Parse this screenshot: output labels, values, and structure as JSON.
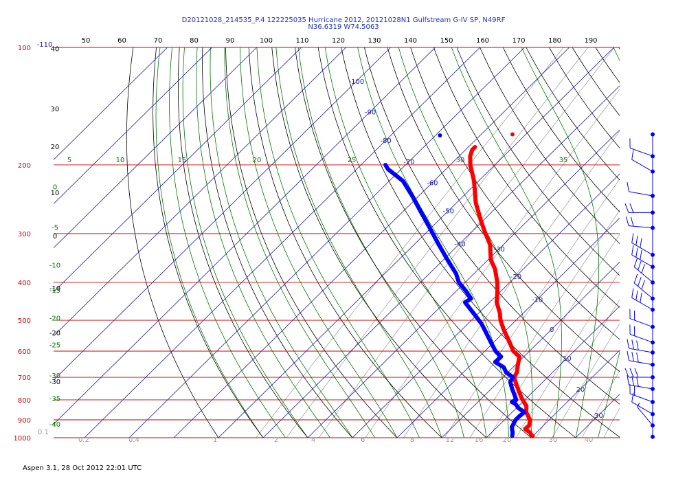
{
  "header": {
    "line1": "D20121028_214535_P.4 122225035 Hurricane 2012, 20121028N1 Gulfstream G-IV SP, N49RF",
    "line2": "N36.6319 W74.5063"
  },
  "footer": "Aspen 3.1, 28 Oct 2012  22:01 UTC",
  "colors": {
    "isobar": "#cc0000",
    "isotherm": "#1a1aaa",
    "dry_adiabat": "#000000",
    "moist_adiabat": "#007700",
    "mixing_ratio": "#999999",
    "temperature": "#ff0000",
    "dewpoint": "#0000ff",
    "wind": "#0000ff"
  },
  "chart_data": {
    "type": "skew-t log-p",
    "pressure_axis": {
      "unit": "hPa",
      "ticks": [
        100,
        200,
        300,
        400,
        500,
        600,
        700,
        800,
        900,
        1000
      ],
      "tick_labels": [
        "100",
        "200",
        "300",
        "400",
        "500",
        "600",
        "700",
        "800",
        "900",
        "1000"
      ]
    },
    "top_scale": {
      "ticks": [
        50,
        60,
        70,
        80,
        90,
        100,
        110,
        120,
        130,
        140,
        150,
        160,
        170,
        180,
        190
      ],
      "tick_labels": [
        "50",
        "60",
        "70",
        "80",
        "90",
        "100",
        "110",
        "120",
        "130",
        "140",
        "150",
        "160",
        "170",
        "180",
        "190"
      ]
    },
    "isotherms": {
      "labels": [
        {
          "t": -110,
          "text": "-110",
          "p": 100
        },
        {
          "t": -100,
          "text": "-100",
          "p": 122
        },
        {
          "t": -90,
          "text": "-90",
          "p": 146
        },
        {
          "t": -80,
          "text": "-80",
          "p": 173
        },
        {
          "t": -70,
          "text": "-70",
          "p": 196
        },
        {
          "t": -60,
          "text": "-60",
          "p": 222
        },
        {
          "t": -50,
          "text": "-50",
          "p": 262
        },
        {
          "t": -40,
          "text": "-40",
          "p": 318
        },
        {
          "t": -30,
          "text": "-30",
          "p": 328
        },
        {
          "t": -20,
          "text": "-20",
          "p": 386
        },
        {
          "t": -10,
          "text": "-10",
          "p": 442
        },
        {
          "t": 0,
          "text": "0",
          "p": 527
        },
        {
          "t": 10,
          "text": "10",
          "p": 625
        },
        {
          "t": 20,
          "text": "20",
          "p": 750
        },
        {
          "t": 30,
          "text": "30",
          "p": 875
        }
      ]
    },
    "dry_adiabat_labels": [
      {
        "text": "40",
        "p": 101
      },
      {
        "text": "30",
        "p": 144
      },
      {
        "text": "20",
        "p": 180
      },
      {
        "text": "10",
        "p": 236
      },
      {
        "text": "0",
        "p": 305
      },
      {
        "text": "-10",
        "p": 415
      },
      {
        "text": "-20",
        "p": 540
      },
      {
        "text": "-30",
        "p": 720
      }
    ],
    "moist_adiabat_labels": [
      {
        "text": "5",
        "x": 101
      },
      {
        "text": "10",
        "x": 175
      },
      {
        "text": "15",
        "x": 265
      },
      {
        "text": "20",
        "x": 374
      },
      {
        "text": "25",
        "x": 512
      },
      {
        "text": "30",
        "x": 670
      },
      {
        "text": "35",
        "x": 820
      },
      {
        "text": "0",
        "p": 228
      },
      {
        "text": "-5",
        "p": 290
      },
      {
        "text": "-10",
        "p": 362
      },
      {
        "text": "-15",
        "p": 420
      },
      {
        "text": "-20",
        "p": 495
      },
      {
        "text": "-25",
        "p": 580
      },
      {
        "text": "-30",
        "p": 695
      },
      {
        "text": "-35",
        "p": 795
      },
      {
        "text": "-40",
        "p": 925
      }
    ],
    "mixing_ratio_labels": [
      "0.1",
      "0.2",
      "0.4",
      "1",
      "2",
      "4",
      "6",
      "8",
      "12",
      "16",
      "20",
      "30",
      "40"
    ],
    "temperature": {
      "name": "Temperature",
      "p": [
        180,
        183,
        190,
        200,
        220,
        250,
        280,
        300,
        320,
        350,
        370,
        400,
        420,
        450,
        480,
        500,
        530,
        560,
        600,
        620,
        650,
        680,
        700,
        730,
        760,
        790,
        810,
        830,
        860,
        900,
        930,
        950,
        970,
        985,
        990
      ],
      "t": [
        -58.5,
        -58.5,
        -57.5,
        -55.5,
        -51,
        -45.7,
        -40.1,
        -36.5,
        -33,
        -29.4,
        -26.3,
        -22.8,
        -20.9,
        -18.4,
        -15.2,
        -13.5,
        -10.5,
        -7.4,
        -3.6,
        -1,
        0.5,
        2,
        2.5,
        4.6,
        6.7,
        8.8,
        10.3,
        11.8,
        13.1,
        15.7,
        16.8,
        16.7,
        18.6,
        19.5,
        20
      ]
    },
    "dewpoint": {
      "name": "Dewpoint",
      "p": [
        200,
        205,
        220,
        240,
        260,
        290,
        320,
        350,
        380,
        400,
        420,
        440,
        450,
        480,
        510,
        540,
        570,
        600,
        620,
        640,
        660,
        680,
        700,
        720,
        750,
        780,
        800,
        810,
        820,
        840,
        860,
        880,
        900,
        940,
        970,
        990
      ],
      "t": [
        -74.5,
        -73,
        -66.9,
        -61.5,
        -56.8,
        -50.3,
        -44.5,
        -39.1,
        -34,
        -31.4,
        -28,
        -25,
        -25.5,
        -21.1,
        -17,
        -13.7,
        -10.6,
        -7.6,
        -5.1,
        -5.2,
        -2.1,
        -0.4,
        2.2,
        2.7,
        4.7,
        6.8,
        8.1,
        7.6,
        8.9,
        10.5,
        12.7,
        12.5,
        12.5,
        13.3,
        14.7,
        15.4
      ]
    },
    "extra_points": [
      {
        "series": "temperature",
        "p": 167,
        "t": -53
      },
      {
        "series": "dewpoint",
        "p": 168,
        "t": -69
      }
    ],
    "wind_profile": {
      "p": [
        167,
        190,
        208,
        240,
        265,
        290,
        340,
        365,
        400,
        440,
        470,
        520,
        570,
        605,
        650,
        700,
        750,
        810,
        870,
        930,
        995
      ],
      "barb_direction_deg": [
        290,
        290,
        300,
        280,
        270,
        275,
        300,
        300,
        310,
        310,
        300,
        290,
        290,
        280,
        280,
        270,
        280,
        290,
        300,
        320,
        340
      ],
      "barbs": [
        "",
        "long",
        "long",
        "long",
        "long,long",
        "long,long",
        "long,long,long",
        "long,long,long",
        "long,long,long",
        "long,long,long",
        "long,long,long",
        "long,long",
        "long,long",
        "long,long,long",
        "long,long,long",
        "long,long,long",
        "long,long,long",
        "long,long",
        "long",
        "short",
        ""
      ]
    }
  }
}
